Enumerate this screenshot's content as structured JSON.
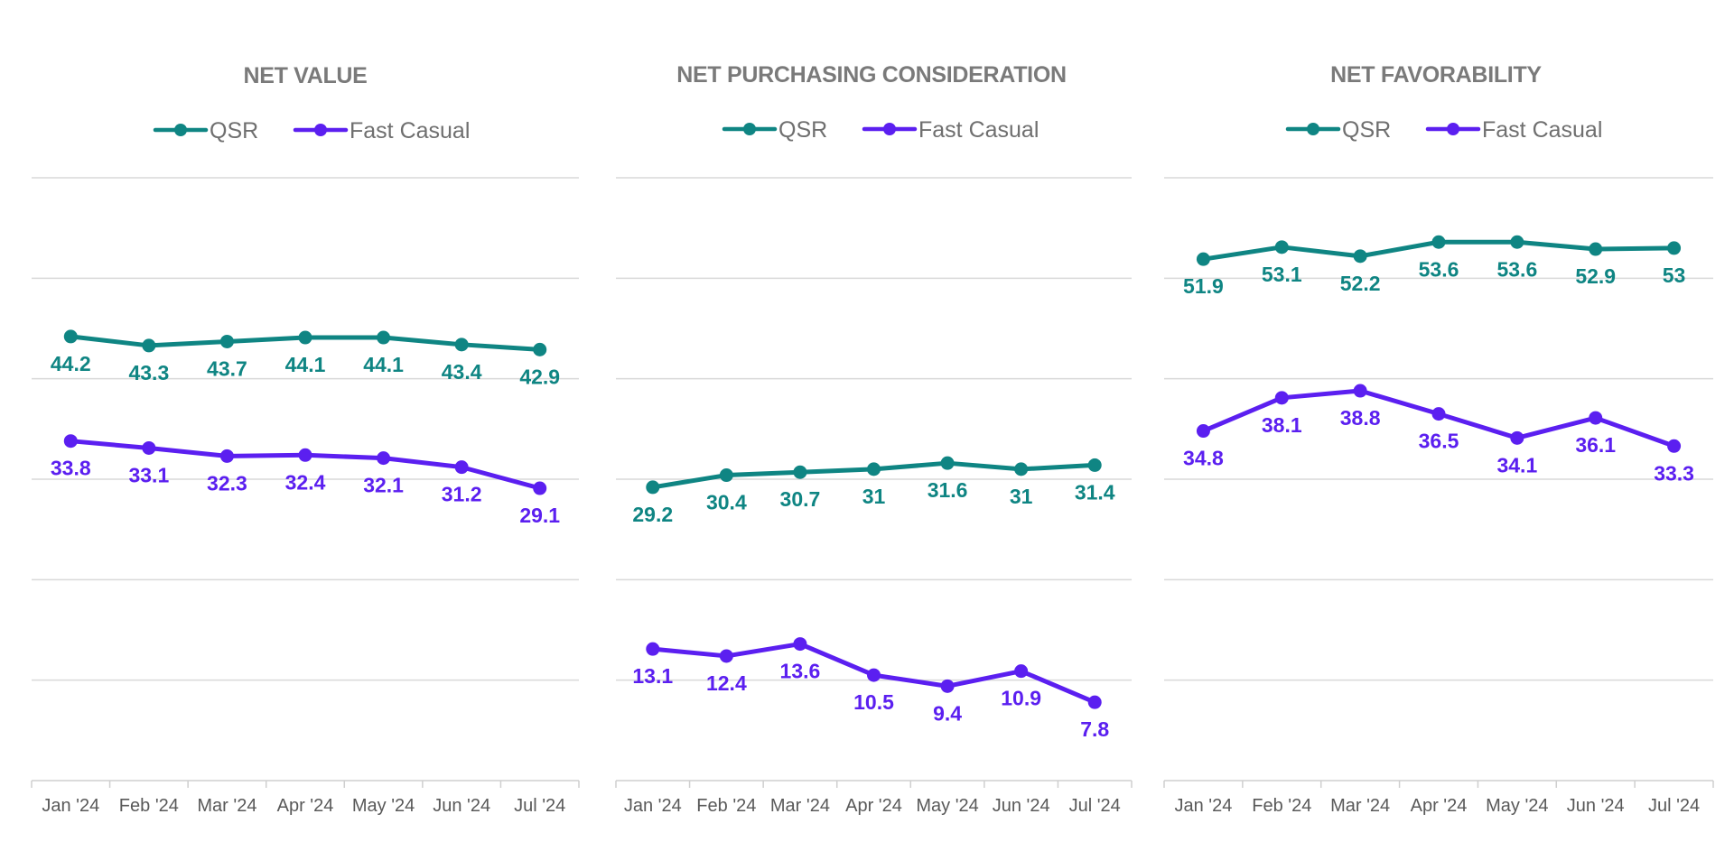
{
  "colors": {
    "qsr": "#0f8583",
    "fast_casual": "#5b1ff0"
  },
  "chart_data": [
    {
      "type": "line",
      "title": "NET VALUE",
      "categories": [
        "Jan '24",
        "Feb '24",
        "Mar '24",
        "Apr '24",
        "May '24",
        "Jun '24",
        "Jul '24"
      ],
      "series": [
        {
          "name": "QSR",
          "values": [
            44.2,
            43.3,
            43.7,
            44.1,
            44.1,
            43.4,
            42.9
          ]
        },
        {
          "name": "Fast Casual",
          "values": [
            33.8,
            33.1,
            32.3,
            32.4,
            32.1,
            31.2,
            29.1
          ]
        }
      ],
      "ylim": [
        0,
        60
      ],
      "grid": true,
      "legend": "top-center"
    },
    {
      "type": "line",
      "title": "NET PURCHASING CONSIDERATION",
      "categories": [
        "Jan '24",
        "Feb '24",
        "Mar '24",
        "Apr '24",
        "May '24",
        "Jun '24",
        "Jul '24"
      ],
      "series": [
        {
          "name": "QSR",
          "values": [
            29.2,
            30.4,
            30.7,
            31,
            31.6,
            31,
            31.4
          ]
        },
        {
          "name": "Fast Casual",
          "values": [
            13.1,
            12.4,
            13.6,
            10.5,
            9.4,
            10.9,
            7.8
          ]
        }
      ],
      "ylim": [
        0,
        60
      ],
      "grid": true,
      "legend": "top-center"
    },
    {
      "type": "line",
      "title": "NET FAVORABILITY",
      "categories": [
        "Jan '24",
        "Feb '24",
        "Mar '24",
        "Apr '24",
        "May '24",
        "Jun '24",
        "Jul '24"
      ],
      "series": [
        {
          "name": "QSR",
          "values": [
            51.9,
            53.1,
            52.2,
            53.6,
            53.6,
            52.9,
            53
          ]
        },
        {
          "name": "Fast Casual",
          "values": [
            34.8,
            38.1,
            38.8,
            36.5,
            34.1,
            36.1,
            33.3
          ]
        }
      ],
      "ylim": [
        0,
        60
      ],
      "grid": true,
      "legend": "top-center"
    }
  ]
}
